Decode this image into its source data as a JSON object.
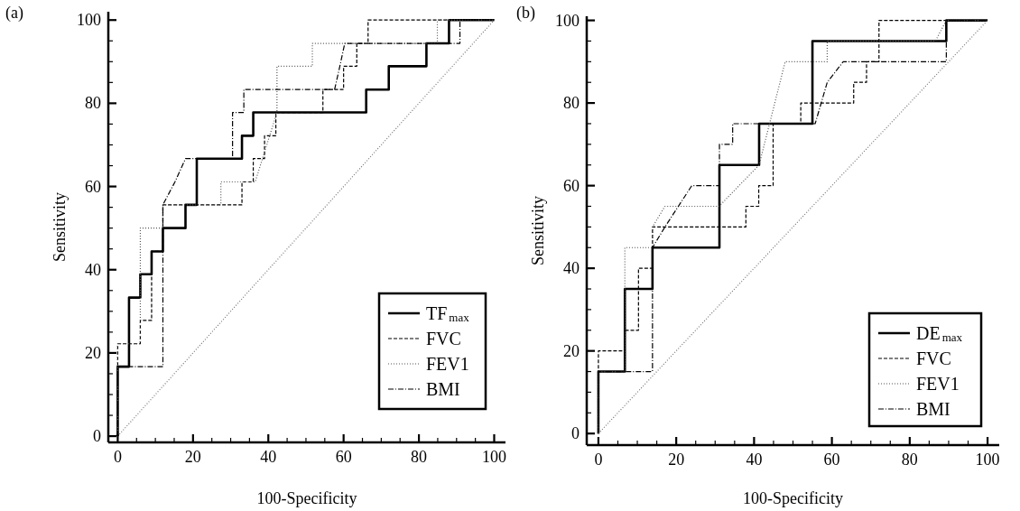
{
  "chart_data": [
    {
      "type": "line",
      "title": "(a)",
      "xlabel": "100-Specificity",
      "ylabel": "Sensitivity",
      "xlim": [
        -2.5,
        103
      ],
      "ylim": [
        -1.5,
        102
      ],
      "xticks": [
        0,
        {
          "value": 5,
          "label": null
        },
        {
          "value": 10,
          "label": null
        },
        {
          "value": 15,
          "label": null
        },
        20,
        {
          "value": 25,
          "label": null
        },
        {
          "value": 30,
          "label": null
        },
        {
          "value": 35,
          "label": null
        },
        40,
        {
          "value": 45,
          "label": null
        },
        {
          "value": 50,
          "label": null
        },
        {
          "value": 55,
          "label": null
        },
        60,
        {
          "value": 65,
          "label": null
        },
        {
          "value": 70,
          "label": null
        },
        {
          "value": 75,
          "label": null
        },
        80,
        {
          "value": 85,
          "label": null
        },
        {
          "value": 90,
          "label": null
        },
        {
          "value": 95,
          "label": null
        },
        100
      ],
      "yticks": [
        0,
        {
          "value": 5,
          "label": null
        },
        {
          "value": 10,
          "label": null
        },
        {
          "value": 15,
          "label": null
        },
        20,
        {
          "value": 25,
          "label": null
        },
        {
          "value": 30,
          "label": null
        },
        {
          "value": 35,
          "label": null
        },
        40,
        {
          "value": 45,
          "label": null
        },
        {
          "value": 50,
          "label": null
        },
        {
          "value": 55,
          "label": null
        },
        60,
        {
          "value": 65,
          "label": null
        },
        {
          "value": 70,
          "label": null
        },
        {
          "value": 75,
          "label": null
        },
        80,
        {
          "value": 85,
          "label": null
        },
        {
          "value": 90,
          "label": null
        },
        {
          "value": 95,
          "label": null
        },
        100
      ],
      "legend": "bottom right",
      "grid": false,
      "series": [
        {
          "name": "TF$_{max}$",
          "color": "#000000",
          "line_style": "solid",
          "x": [
            0,
            0,
            3,
            3,
            6,
            6,
            9,
            9,
            12,
            12,
            18,
            18,
            21,
            21,
            33,
            33,
            36,
            36,
            66,
            66,
            72,
            72,
            82,
            82,
            88,
            88,
            100
          ],
          "values": [
            0,
            16.7,
            16.7,
            33.3,
            33.3,
            38.9,
            38.9,
            44.4,
            44.4,
            50,
            50,
            55.6,
            55.6,
            66.7,
            66.7,
            72.2,
            72.2,
            77.8,
            77.8,
            83.3,
            83.3,
            88.9,
            88.9,
            94.4,
            94.4,
            100,
            100
          ]
        },
        {
          "name": "FVC",
          "color": "#000000",
          "line_style": "dashed",
          "x": [
            0,
            0,
            6,
            6,
            9,
            9,
            12,
            12,
            33,
            33,
            36,
            36,
            39,
            39,
            42,
            42,
            54.5,
            54.5,
            60,
            60,
            63.5,
            63.5,
            66.5,
            66.5,
            100
          ],
          "values": [
            0,
            22.2,
            22.2,
            27.8,
            27.8,
            44.4,
            44.4,
            55.6,
            55.6,
            61.1,
            61.1,
            66.7,
            66.7,
            72.2,
            72.2,
            77.8,
            77.8,
            83.3,
            83.3,
            88.9,
            88.9,
            94.4,
            94.4,
            100,
            100
          ]
        },
        {
          "name": "FEV1",
          "color": "#555555",
          "line_style": "dotted",
          "x": [
            0,
            0,
            6,
            6,
            12,
            12,
            27.4,
            27.4,
            36.5,
            42.3,
            42.3,
            51.7,
            51.7,
            84.9,
            84.9,
            100
          ],
          "values": [
            0,
            22.2,
            22.2,
            50,
            50,
            55.6,
            55.6,
            61.1,
            61.1,
            77.8,
            88.9,
            88.9,
            94.4,
            94.4,
            100,
            100
          ]
        },
        {
          "name": "BMI",
          "color": "#000000",
          "line_style": "dashdot",
          "x": [
            0,
            0,
            12,
            12,
            15.2,
            18,
            30.5,
            30.5,
            33.5,
            33.5,
            57.6,
            59,
            60.3,
            90.9,
            90.9,
            100
          ],
          "values": [
            0,
            16.7,
            16.7,
            55.6,
            61.1,
            66.7,
            66.7,
            77.8,
            77.8,
            83.3,
            83.3,
            88.9,
            94.4,
            94.4,
            100,
            100
          ]
        },
        {
          "color": "#777777",
          "line_style": "dotted",
          "x": [
            0,
            100
          ],
          "values": [
            0,
            100
          ]
        }
      ]
    },
    {
      "type": "line",
      "title": "(b)",
      "xlabel": "100-Specificity",
      "ylabel": "Sensitivity",
      "xlim": [
        -3,
        103
      ],
      "ylim": [
        -2.8,
        101
      ],
      "xticks": [
        0,
        {
          "value": 5,
          "label": null
        },
        {
          "value": 10,
          "label": null
        },
        {
          "value": 15,
          "label": null
        },
        20,
        {
          "value": 25,
          "label": null
        },
        {
          "value": 30,
          "label": null
        },
        {
          "value": 35,
          "label": null
        },
        40,
        {
          "value": 45,
          "label": null
        },
        {
          "value": 50,
          "label": null
        },
        {
          "value": 55,
          "label": null
        },
        60,
        {
          "value": 65,
          "label": null
        },
        {
          "value": 70,
          "label": null
        },
        {
          "value": 75,
          "label": null
        },
        80,
        {
          "value": 85,
          "label": null
        },
        {
          "value": 90,
          "label": null
        },
        {
          "value": 95,
          "label": null
        },
        100
      ],
      "yticks": [
        0,
        {
          "value": 5,
          "label": null
        },
        {
          "value": 10,
          "label": null
        },
        {
          "value": 15,
          "label": null
        },
        20,
        {
          "value": 25,
          "label": null
        },
        {
          "value": 30,
          "label": null
        },
        {
          "value": 35,
          "label": null
        },
        40,
        {
          "value": 45,
          "label": null
        },
        {
          "value": 50,
          "label": null
        },
        {
          "value": 55,
          "label": null
        },
        60,
        {
          "value": 65,
          "label": null
        },
        {
          "value": 70,
          "label": null
        },
        {
          "value": 75,
          "label": null
        },
        80,
        {
          "value": 85,
          "label": null
        },
        {
          "value": 90,
          "label": null
        },
        {
          "value": 95,
          "label": null
        },
        100
      ],
      "legend": "bottom right",
      "grid": false,
      "series": [
        {
          "name": "DE$_{max}$",
          "color": "#000000",
          "line_style": "solid",
          "x": [
            0,
            0,
            6.8,
            6.8,
            13.9,
            13.9,
            31.1,
            31.1,
            41.3,
            41.3,
            55,
            55,
            89.4,
            89.4,
            100
          ],
          "values": [
            0,
            15,
            15,
            35,
            35,
            45,
            45,
            65,
            65,
            75,
            75,
            95,
            95,
            100,
            100
          ]
        },
        {
          "name": "FVC",
          "color": "#000000",
          "line_style": "dashed",
          "x": [
            0,
            0,
            6.8,
            6.8,
            10.3,
            10.3,
            13.9,
            13.9,
            37.9,
            37.9,
            41.2,
            41.2,
            44.9,
            44.9,
            52,
            52,
            65.6,
            65.6,
            68.9,
            68.9,
            72.1,
            72.1,
            100
          ],
          "values": [
            0,
            20,
            20,
            25,
            25,
            40,
            40,
            50,
            50,
            55,
            55,
            60,
            60,
            75,
            75,
            80,
            80,
            85,
            85,
            90,
            90,
            100,
            100
          ]
        },
        {
          "name": "FEV1",
          "color": "#555555",
          "line_style": "dotted",
          "x": [
            0,
            0,
            6.8,
            6.8,
            13.9,
            13.9,
            17.1,
            31,
            41.3,
            48,
            58.8,
            58.8,
            86.6,
            89.4,
            100
          ],
          "values": [
            0,
            15,
            15,
            45,
            45,
            50,
            55,
            55,
            65,
            90,
            90,
            95,
            95,
            100,
            100
          ]
        },
        {
          "name": "BMI",
          "color": "#000000",
          "line_style": "dashdot",
          "x": [
            0,
            0,
            13.9,
            13.9,
            17.1,
            24,
            31.1,
            31.1,
            34.5,
            34.5,
            55.7,
            58.8,
            62.9,
            89.4,
            89.4,
            100
          ],
          "values": [
            0,
            15,
            15,
            45,
            50,
            60,
            60,
            70,
            70,
            75,
            75,
            85,
            90,
            90,
            100,
            100
          ]
        },
        {
          "color": "#777777",
          "line_style": "dotted",
          "x": [
            0,
            100
          ],
          "values": [
            0,
            100
          ]
        }
      ]
    }
  ]
}
